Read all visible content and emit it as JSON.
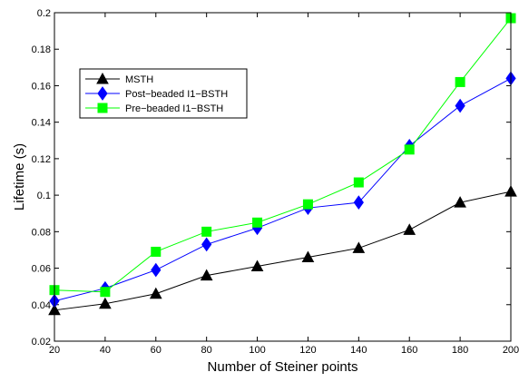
{
  "chart_data": {
    "type": "line",
    "title": "",
    "xlabel": "Number of Steiner points",
    "ylabel": "Lifetime (s)",
    "x": [
      20,
      40,
      60,
      80,
      100,
      120,
      140,
      160,
      180,
      200
    ],
    "xlim": [
      20,
      200
    ],
    "ylim": [
      0.02,
      0.2
    ],
    "xticks": [
      "20",
      "40",
      "60",
      "80",
      "100",
      "120",
      "140",
      "160",
      "180",
      "200"
    ],
    "yticks": [
      "0.02",
      "0.04",
      "0.06",
      "0.08",
      "0.1",
      "0.12",
      "0.14",
      "0.16",
      "0.18",
      "0.2"
    ],
    "grid": false,
    "legend_position": "upper-left",
    "series": [
      {
        "name": "MSTH",
        "color": "#000000",
        "marker": "triangle",
        "values": [
          0.037,
          0.0405,
          0.046,
          0.056,
          0.061,
          0.066,
          0.071,
          0.081,
          0.096,
          0.102
        ]
      },
      {
        "name": "Post−beaded I1−BSTH",
        "color": "#0000ff",
        "marker": "diamond",
        "values": [
          0.042,
          0.049,
          0.059,
          0.073,
          0.082,
          0.093,
          0.096,
          0.127,
          0.149,
          0.164
        ]
      },
      {
        "name": "Pre−beaded I1−BSTH",
        "color": "#00ff00",
        "marker": "square",
        "values": [
          0.048,
          0.047,
          0.069,
          0.08,
          0.085,
          0.095,
          0.107,
          0.125,
          0.162,
          0.197
        ]
      }
    ]
  }
}
